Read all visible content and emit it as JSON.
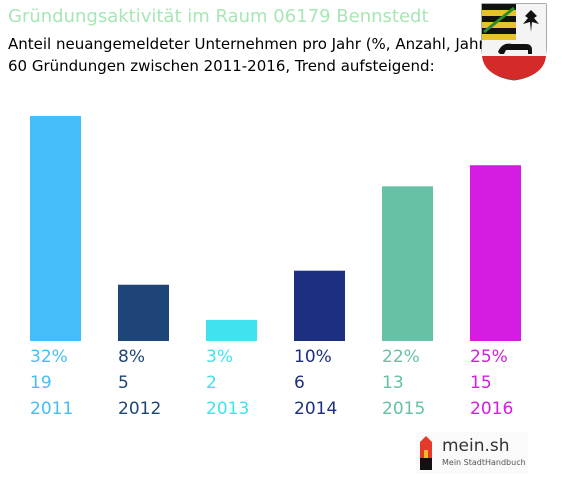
{
  "header": {
    "title": "Gründungsaktivität im Raum 06179 Bennstedt",
    "subtitle_line1": "Anteil neuangemeldeter Unternehmen pro Jahr (%, Anzahl, Jahr)",
    "subtitle_line2": "60 Gründungen zwischen 2011-2016, Trend aufsteigend:"
  },
  "chart_data": {
    "type": "bar",
    "categories": [
      "2011",
      "2012",
      "2013",
      "2014",
      "2015",
      "2016"
    ],
    "values": [
      32,
      8,
      3,
      10,
      22,
      25
    ],
    "counts": [
      19,
      5,
      2,
      6,
      13,
      15
    ],
    "percent_labels": [
      "32%",
      "8%",
      "3%",
      "10%",
      "22%",
      "25%"
    ],
    "colors": [
      "#45bdf9",
      "#1d4577",
      "#3fe3f0",
      "#1c2f80",
      "#66c1a7",
      "#d41ce2"
    ],
    "ylim": [
      0,
      32
    ],
    "title": "Gründungsaktivität im Raum 06179 Bennstedt",
    "xlabel": "",
    "ylabel": "",
    "grid": false
  },
  "branding": {
    "logo_text": "mein.sh",
    "logo_subtext": "Mein StadtHandbuch",
    "coat_of_arms_icon": "coat-of-arms-icon"
  }
}
